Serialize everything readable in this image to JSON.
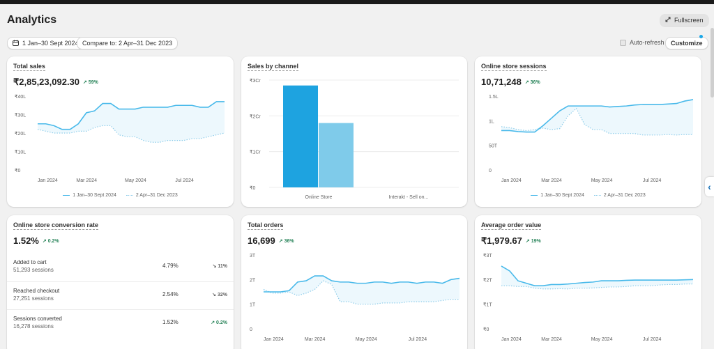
{
  "header": {
    "title": "Analytics",
    "fullscreen_label": "Fullscreen",
    "date_range_label": "1 Jan–30 Sept 2024",
    "compare_label": "Compare to: 2 Apr–31 Dec 2023",
    "auto_refresh_label": "Auto-refresh",
    "customize_label": "Customize"
  },
  "colors": {
    "accent": "#48b9ea",
    "positive": "#29845a",
    "bar_primary": "#1ea3e0",
    "bar_secondary": "#7fcbea"
  },
  "cards": {
    "total_sales": {
      "title": "Total sales",
      "value": "₹2,85,23,092.30",
      "change": "59%",
      "chart_data": {
        "type": "line",
        "title": "",
        "yticks": [
          "₹40L",
          "₹30L",
          "₹20L",
          "₹10L",
          "₹0"
        ],
        "ylim": [
          0,
          40
        ],
        "xticks": [
          "Jan 2024",
          "Mar 2024",
          "May 2024",
          "Jul 2024"
        ],
        "series": [
          {
            "name": "1 Jan–30 Sept 2024",
            "style": "solid",
            "values": [
              25,
              25,
              24,
              22,
              22,
              25,
              31,
              32,
              36,
              36,
              33,
              33,
              33,
              34,
              34,
              34,
              34,
              35,
              35,
              35,
              34,
              34,
              37,
              37
            ]
          },
          {
            "name": "2 Apr–31 Dec 2023",
            "style": "dotted",
            "values": [
              22,
              21,
              20,
              20,
              20,
              21,
              21,
              23,
              24,
              24,
              19,
              18,
              18,
              16,
              15,
              15,
              16,
              16,
              16,
              17,
              17,
              18,
              19,
              20
            ]
          }
        ]
      }
    },
    "sales_by_channel": {
      "title": "Sales by channel",
      "chart_data": {
        "type": "bar",
        "title": "",
        "yticks": [
          "₹3Cr",
          "₹2Cr",
          "₹1Cr",
          "₹0"
        ],
        "ylim": [
          0,
          3
        ],
        "categories": [
          "Online Store",
          "Interakt - Sell on..."
        ],
        "series": [
          {
            "name": "",
            "values": [
              2.85,
              0
            ]
          },
          {
            "name": "",
            "values": [
              1.8,
              0
            ]
          }
        ]
      }
    },
    "online_store_sessions": {
      "title": "Online store sessions",
      "value": "10,71,248",
      "change": "36%",
      "chart_data": {
        "type": "line",
        "title": "",
        "yticks": [
          "1.5L",
          "1L",
          "50T",
          "0"
        ],
        "ylim": [
          0,
          150
        ],
        "xticks": [
          "Jan 2024",
          "Mar 2024",
          "May 2024",
          "Jul 2024"
        ],
        "series": [
          {
            "name": "1 Jan–30 Sept 2024",
            "style": "solid",
            "values": [
              80,
              80,
              78,
              77,
              77,
              90,
              105,
              120,
              130,
              130,
              130,
              130,
              130,
              128,
              129,
              130,
              132,
              133,
              133,
              133,
              134,
              135,
              140,
              143
            ]
          },
          {
            "name": "2 Apr–31 Dec 2023",
            "style": "dotted",
            "values": [
              88,
              86,
              82,
              80,
              82,
              85,
              82,
              84,
              110,
              125,
              92,
              82,
              82,
              74,
              74,
              74,
              74,
              71,
              71,
              71,
              72,
              71,
              72,
              72
            ]
          }
        ]
      }
    },
    "conversion_rate": {
      "title": "Online store conversion rate",
      "value": "1.52%",
      "change": "0.2%",
      "rows": [
        {
          "label": "Added to cart",
          "sessions": "51,293 sessions",
          "pct": "4.79%",
          "change": "11%",
          "direction": "down"
        },
        {
          "label": "Reached checkout",
          "sessions": "27,251 sessions",
          "pct": "2.54%",
          "change": "32%",
          "direction": "down"
        },
        {
          "label": "Sessions converted",
          "sessions": "16,278 sessions",
          "pct": "1.52%",
          "change": "0.2%",
          "direction": "up"
        }
      ]
    },
    "total_orders": {
      "title": "Total orders",
      "value": "16,699",
      "change": "36%",
      "chart_data": {
        "type": "line",
        "title": "",
        "yticks": [
          "3T",
          "2T",
          "1T",
          "0"
        ],
        "ylim": [
          0,
          3
        ],
        "xticks": [
          "Jan 2024",
          "Mar 2024",
          "May 2024",
          "Jul 2024"
        ],
        "series": [
          {
            "name": "1 Jan–30 Sept 2024",
            "style": "solid",
            "values": [
              1.5,
              1.5,
              1.5,
              1.55,
              1.9,
              1.95,
              2.15,
              2.15,
              1.95,
              1.9,
              1.9,
              1.85,
              1.85,
              1.9,
              1.9,
              1.85,
              1.9,
              1.9,
              1.85,
              1.9,
              1.9,
              1.85,
              2.0,
              2.05
            ]
          },
          {
            "name": "2 Apr–31 Dec 2023",
            "style": "dotted",
            "values": [
              1.6,
              1.45,
              1.45,
              1.5,
              1.35,
              1.45,
              1.6,
              1.95,
              1.8,
              1.1,
              1.1,
              1.0,
              1.0,
              1.0,
              1.05,
              1.05,
              1.05,
              1.1,
              1.1,
              1.1,
              1.1,
              1.15,
              1.2,
              1.2
            ]
          }
        ]
      }
    },
    "average_order_value": {
      "title": "Average order value",
      "value": "₹1,979.67",
      "change": "19%",
      "chart_data": {
        "type": "line",
        "title": "",
        "yticks": [
          "₹3T",
          "₹2T",
          "₹1T",
          "₹0"
        ],
        "ylim": [
          0,
          3
        ],
        "xticks": [
          "Jan 2024",
          "Mar 2024",
          "May 2024",
          "Jul 2024"
        ],
        "series": [
          {
            "name": "1 Jan–30 Sept 2024",
            "style": "solid",
            "values": [
              2.55,
              2.35,
              1.95,
              1.85,
              1.75,
              1.75,
              1.8,
              1.8,
              1.82,
              1.85,
              1.88,
              1.9,
              1.95,
              1.95,
              1.95,
              1.97,
              1.98,
              1.98,
              1.98,
              1.98,
              1.98,
              1.98,
              1.99,
              2.0
            ]
          },
          {
            "name": "2 Apr–31 Dec 2023",
            "style": "dotted",
            "values": [
              1.75,
              1.75,
              1.72,
              1.72,
              1.65,
              1.62,
              1.62,
              1.63,
              1.62,
              1.65,
              1.65,
              1.66,
              1.68,
              1.7,
              1.7,
              1.72,
              1.75,
              1.75,
              1.75,
              1.78,
              1.8,
              1.8,
              1.82,
              1.82
            ]
          }
        ]
      }
    }
  }
}
